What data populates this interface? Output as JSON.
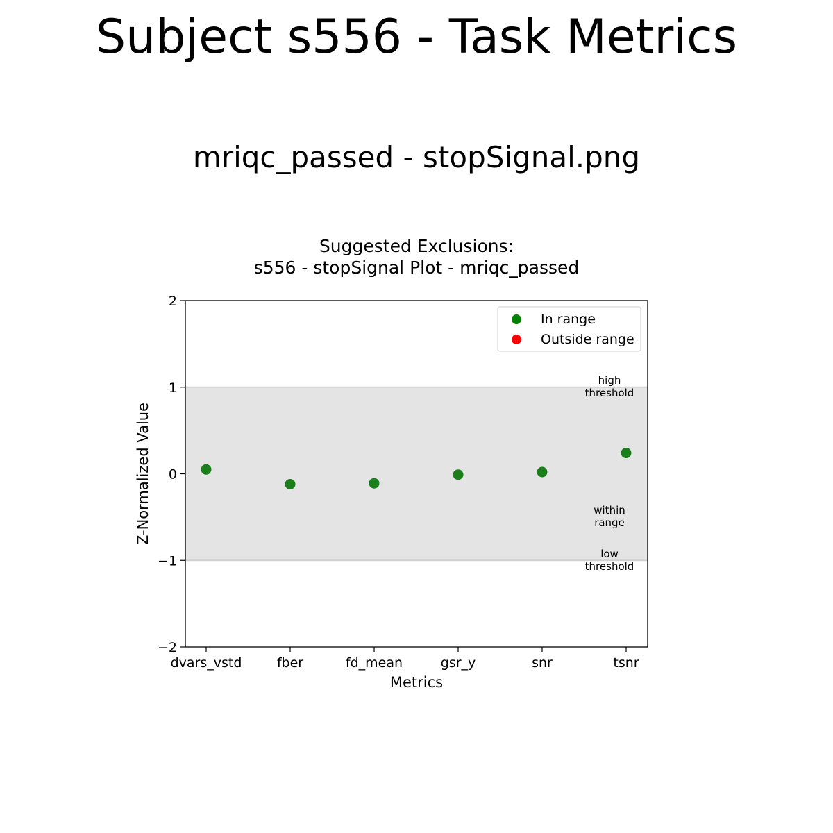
{
  "page": {
    "title": "Subject s556 - Task Metrics",
    "subtitle": "mriqc_passed - stopSignal.png"
  },
  "chart_data": {
    "type": "scatter",
    "title_lines": [
      "Suggested Exclusions:",
      "s556 - stopSignal Plot - mriqc_passed"
    ],
    "xlabel": "Metrics",
    "ylabel": "Z-Normalized Value",
    "categories": [
      "dvars_vstd",
      "fber",
      "fd_mean",
      "gsr_y",
      "snr",
      "tsnr"
    ],
    "values": [
      0.05,
      -0.12,
      -0.11,
      -0.01,
      0.02,
      0.24
    ],
    "status": [
      "in",
      "in",
      "in",
      "in",
      "in",
      "in"
    ],
    "ylim": [
      -2,
      2
    ],
    "yticks": [
      2,
      1,
      0,
      -1,
      -2
    ],
    "ytick_labels": [
      "2",
      "1",
      "0",
      "−1",
      "−2"
    ],
    "range_band": [
      -1,
      1
    ],
    "grid": false,
    "legend_position": "top-right",
    "legend": [
      {
        "label": "In range",
        "color": "#008000"
      },
      {
        "label": "Outside range",
        "color": "#ff0000"
      }
    ],
    "annotations": {
      "high": [
        "high",
        "threshold"
      ],
      "within": [
        "within",
        "range"
      ],
      "low": [
        "low",
        "threshold"
      ]
    },
    "colors": {
      "in_range": "#1a7f1a",
      "outside_range": "#ff0000",
      "band": "#e4e4e4",
      "threshold_line": "#d0d0d0"
    }
  }
}
